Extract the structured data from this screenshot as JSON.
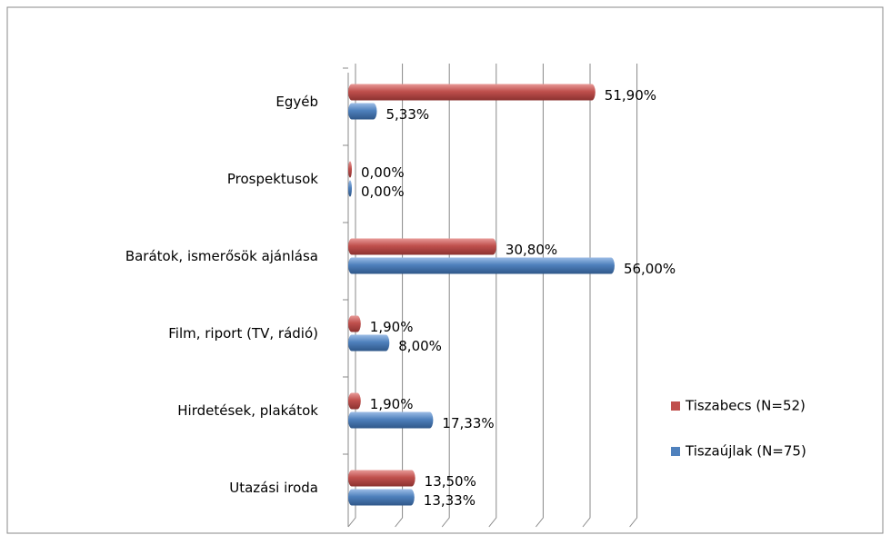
{
  "chart_data": {
    "type": "bar",
    "orientation": "horizontal",
    "categories": [
      "Egyéb",
      "Prospektusok",
      "Barátok, ismerősök ajánlása",
      "Film, riport (TV,  rádió)",
      "Hirdetések, plakátok",
      "Utazási iroda"
    ],
    "series": [
      {
        "name": "Tiszabecs (N=52)",
        "color": "#c0504d",
        "values": [
          51.9,
          0,
          30.8,
          1.9,
          1.9,
          13.5
        ],
        "value_labels": [
          "51,90%",
          "0,00%",
          "30,80%",
          "1,90%",
          "1,90%",
          "13,50%"
        ]
      },
      {
        "name": "Tiszaújlak (N=75)",
        "color": "#4f81bd",
        "values": [
          5.33,
          0,
          56,
          8,
          17.33,
          13.33
        ],
        "value_labels": [
          "5,33%",
          "0,00%",
          "56,00%",
          "8,00%",
          "17,33%",
          "13,33%"
        ]
      }
    ],
    "xlim": [
      0,
      60
    ],
    "xticks": [
      0,
      10,
      20,
      30,
      40,
      50,
      60
    ],
    "grid": true,
    "legend": "right"
  }
}
